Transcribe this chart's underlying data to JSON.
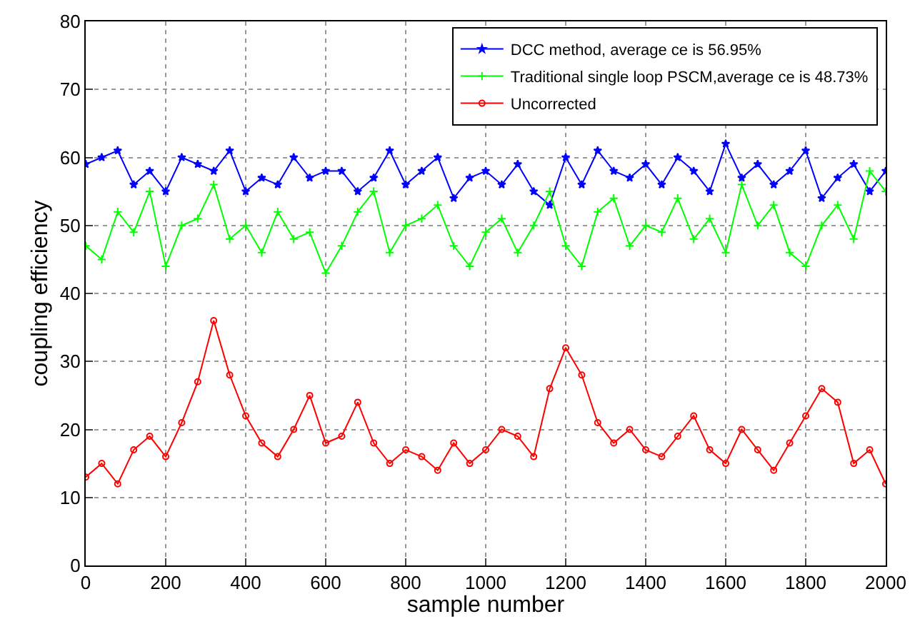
{
  "chart_data": {
    "type": "line",
    "xlabel": "sample number",
    "ylabel": "coupling efficiency",
    "x": [
      0,
      40,
      80,
      120,
      160,
      200,
      240,
      280,
      320,
      360,
      400,
      440,
      480,
      520,
      560,
      600,
      640,
      680,
      720,
      760,
      800,
      840,
      880,
      920,
      960,
      1000,
      1040,
      1080,
      1120,
      1160,
      1200,
      1240,
      1280,
      1320,
      1360,
      1400,
      1440,
      1480,
      1520,
      1560,
      1600,
      1640,
      1680,
      1720,
      1760,
      1800,
      1840,
      1880,
      1920,
      1960,
      2000
    ],
    "series": [
      {
        "name": "DCC method, average ce is 56.95%",
        "color": "#0000ff",
        "marker": "star",
        "values": [
          59,
          60,
          61,
          56,
          58,
          55,
          60,
          59,
          58,
          61,
          55,
          57,
          56,
          60,
          57,
          58,
          58,
          55,
          57,
          61,
          56,
          58,
          60,
          54,
          57,
          58,
          56,
          59,
          55,
          53,
          60,
          56,
          61,
          58,
          57,
          59,
          56,
          60,
          58,
          55,
          62,
          57,
          59,
          56,
          58,
          61,
          54,
          57,
          59,
          55,
          58
        ]
      },
      {
        "name": "Traditional single loop PSCM,average ce is 48.73%",
        "color": "#00ff00",
        "marker": "cross",
        "values": [
          47,
          45,
          52,
          49,
          55,
          44,
          50,
          51,
          56,
          48,
          50,
          46,
          52,
          48,
          49,
          43,
          47,
          52,
          55,
          46,
          50,
          51,
          53,
          47,
          44,
          49,
          51,
          46,
          50,
          55,
          47,
          44,
          52,
          54,
          47,
          50,
          49,
          54,
          48,
          51,
          46,
          56,
          50,
          53,
          46,
          44,
          50,
          53,
          48,
          58,
          55
        ]
      },
      {
        "name": "Uncorrected",
        "color": "#ff0000",
        "marker": "circle",
        "values": [
          13,
          15,
          12,
          17,
          19,
          16,
          21,
          27,
          36,
          28,
          22,
          18,
          16,
          20,
          25,
          18,
          19,
          24,
          18,
          15,
          17,
          16,
          14,
          18,
          15,
          17,
          20,
          19,
          16,
          26,
          32,
          28,
          21,
          18,
          20,
          17,
          16,
          19,
          22,
          17,
          15,
          20,
          17,
          14,
          18,
          22,
          26,
          24,
          15,
          17,
          12
        ]
      }
    ],
    "xlim": [
      0,
      2000
    ],
    "xticks": [
      0,
      200,
      400,
      600,
      800,
      1000,
      1200,
      1400,
      1600,
      1800,
      2000
    ],
    "ylim": [
      0,
      80
    ],
    "yticks": [
      0,
      10,
      20,
      30,
      40,
      50,
      60,
      70,
      80
    ],
    "grid": true,
    "legend": "top right"
  }
}
